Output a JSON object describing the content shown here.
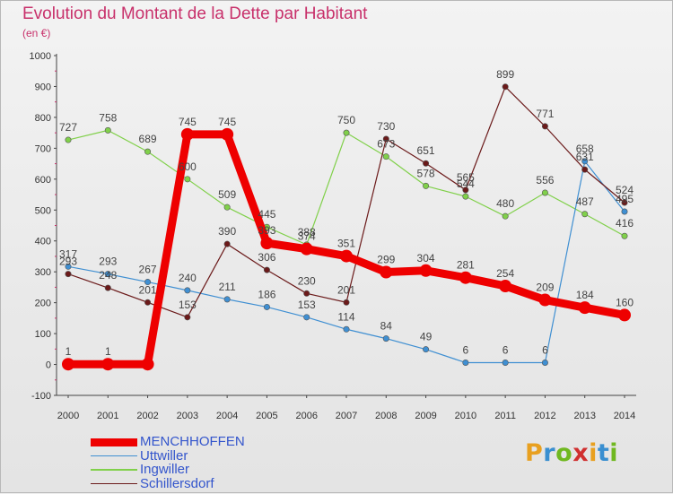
{
  "title": "Evolution du Montant de la Dette par Habitant",
  "subtitle": "(en €)",
  "logo": {
    "letters": [
      "P",
      "r",
      "o",
      "x",
      "i",
      "t",
      "i"
    ],
    "colors": [
      "#e8a020",
      "#3a8fd0",
      "#70b820",
      "#d03030",
      "#e8a020",
      "#3a8fd0",
      "#70b820"
    ]
  },
  "chart_data": {
    "type": "line",
    "x": [
      "2000",
      "2001",
      "2002",
      "2003",
      "2004",
      "2005",
      "2006",
      "2007",
      "2008",
      "2009",
      "2010",
      "2011",
      "2012",
      "2013",
      "2014"
    ],
    "ylim": [
      -100,
      1000
    ],
    "yticks": [
      "-100",
      "0",
      "100",
      "200",
      "300",
      "400",
      "500",
      "600",
      "700",
      "800",
      "900",
      "1000"
    ],
    "grid": false,
    "legend_position": "bottom-left",
    "series": [
      {
        "name": "MENCHHOFFEN",
        "color": "#ee0000",
        "values": [
          1,
          1,
          1,
          745,
          745,
          393,
          374,
          351,
          299,
          304,
          281,
          254,
          209,
          184,
          160
        ],
        "labels": [
          "1",
          "1",
          "",
          "745",
          "745",
          "393",
          "374",
          "351",
          "299",
          "304",
          "281",
          "254",
          "209",
          "184",
          "160"
        ]
      },
      {
        "name": "Uttwiller",
        "color": "#3f8fd2",
        "values": [
          317,
          293,
          267,
          240,
          211,
          186,
          153,
          114,
          84,
          49,
          6,
          6,
          6,
          658,
          495
        ],
        "labels": [
          "317",
          "293",
          "267",
          "240",
          "211",
          "186",
          "153",
          "114",
          "84",
          "49",
          "6",
          "6",
          "6",
          "658",
          "495"
        ]
      },
      {
        "name": "Ingwiller",
        "color": "#80d04a",
        "values": [
          727,
          758,
          689,
          600,
          509,
          445,
          388,
          750,
          673,
          578,
          544,
          480,
          556,
          487,
          416
        ],
        "labels": [
          "727",
          "758",
          "689",
          "600",
          "509",
          "445",
          "388",
          "750",
          "673",
          "578",
          "544",
          "480",
          "556",
          "487",
          "416"
        ]
      },
      {
        "name": "Schillersdorf",
        "color": "#6b1a1a",
        "values": [
          293,
          248,
          201,
          153,
          390,
          306,
          230,
          201,
          730,
          651,
          565,
          899,
          771,
          631,
          524
        ],
        "labels": [
          "293",
          "248",
          "201",
          "153",
          "390",
          "306",
          "230",
          "201",
          "730",
          "651",
          "565",
          "899",
          "771",
          "631",
          "524"
        ]
      }
    ]
  }
}
